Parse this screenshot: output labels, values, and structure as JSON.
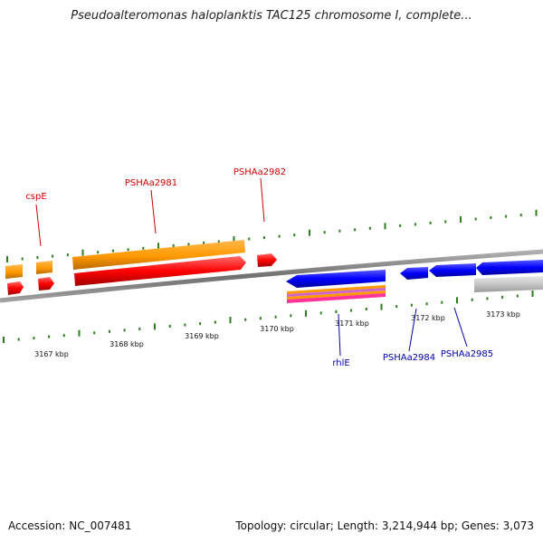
{
  "title": "Pseudoalteromonas haloplanktis TAC125 chromosome I, complete...",
  "footer": {
    "accession": "Accession: NC_007481",
    "summary": "Topology: circular; Length: 3,214,944 bp; Genes: 3,073"
  },
  "axis": {
    "tick_labels": [
      "3167 kbp",
      "3168 kbp",
      "3169 kbp",
      "3170 kbp",
      "3171 kbp",
      "3172 kbp",
      "3173 kbp"
    ]
  },
  "gene_labels": {
    "top": [
      "cspE",
      "PSHAa2981",
      "PSHAa2982"
    ],
    "bottom": [
      "rhlE",
      "PSHAa2984",
      "PSHAa2985"
    ]
  },
  "colors": {
    "gene_top": "#cc0000",
    "gene_bottom": "#0000aa",
    "tick": "#2e7d1f",
    "backbone": "#8a8a8a",
    "feature_orange": "#ff9900",
    "feature_red": "#ff0000",
    "feature_blue": "#0000ff",
    "feature_gray": "#c8c8c8"
  }
}
